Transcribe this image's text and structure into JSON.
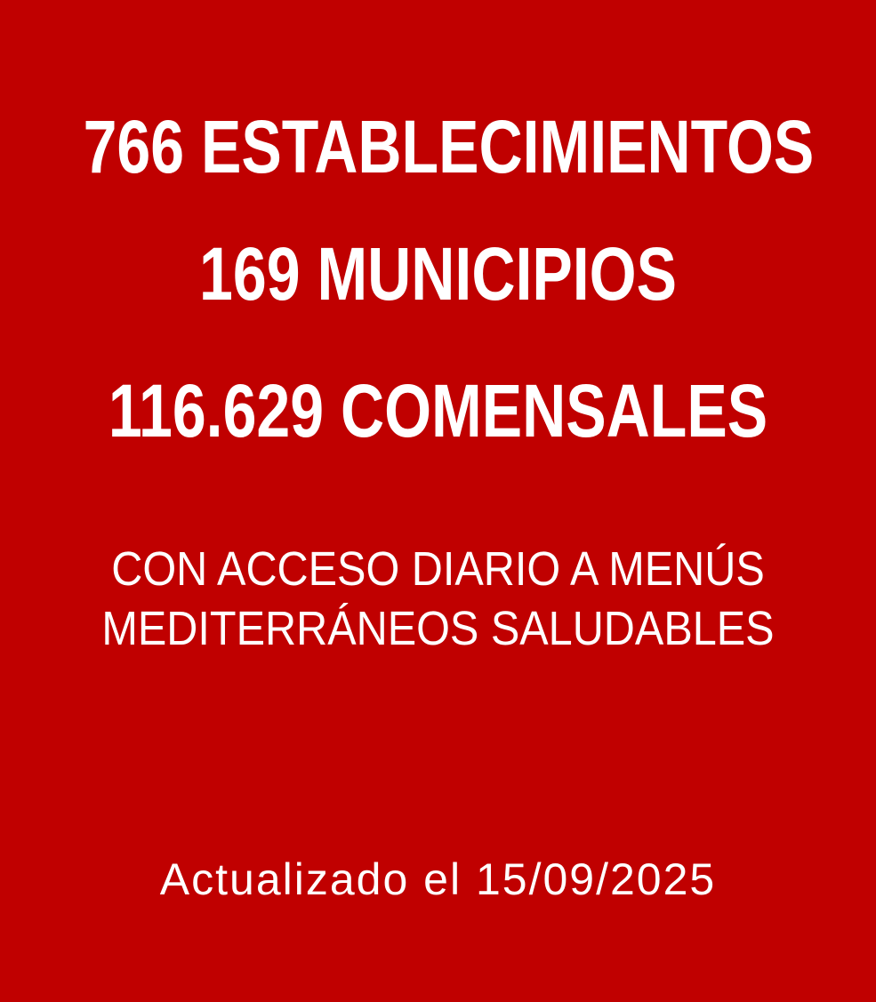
{
  "slide": {
    "background_color": "#C00000",
    "text_color": "#FFFFFF"
  },
  "stats": [
    {
      "value": "766",
      "unit": "ESTABLECIMIENTOS",
      "text": "766 ESTABLECIMIENTOS"
    },
    {
      "value": "169",
      "unit": "MUNICIPIOS",
      "text": "169 MUNICIPIOS"
    },
    {
      "value": "116.629",
      "unit": "COMENSALES",
      "text": "116.629 COMENSALES"
    }
  ],
  "description": {
    "lines": [
      "CON ACCESO DIARIO A MENÚS",
      "MEDITERRÁNEOS SALUDABLES"
    ]
  },
  "footer": {
    "updated_text": "Actualizado el 15/09/2025"
  }
}
